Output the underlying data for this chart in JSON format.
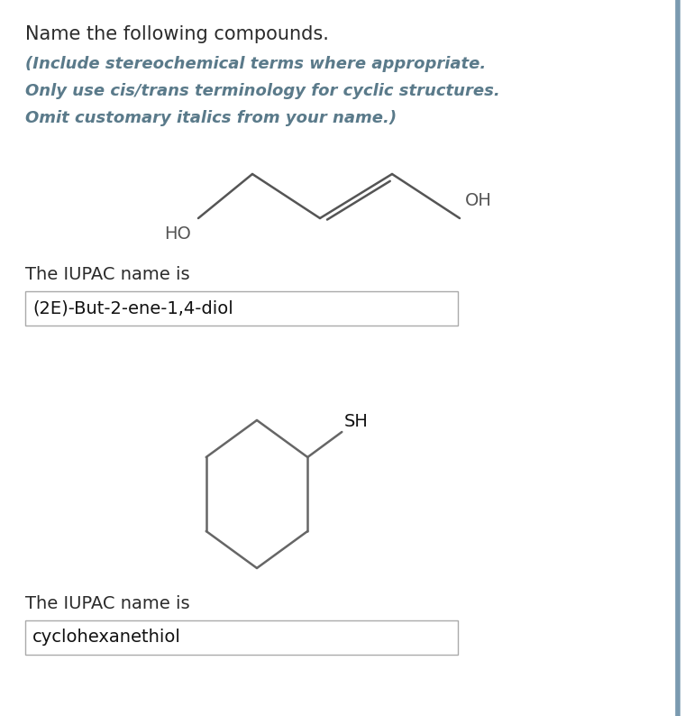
{
  "title": "Name the following compounds.",
  "subtitle_lines": [
    "(Include stereochemical terms where appropriate.",
    "Only use cis/trans terminology for cyclic structures.",
    "Omit customary italics from your name.)"
  ],
  "compound1": {
    "label_ho": "HO",
    "label_oh": "OH",
    "answer_label": "The IUPAC name is",
    "answer_text": "(2E)-But-2-ene-1,4-diol",
    "molecule_color": "#555555"
  },
  "compound2": {
    "label_sh": "SH",
    "answer_label": "The IUPAC name is",
    "answer_text": "cyclohexanethiol",
    "molecule_color": "#666666"
  },
  "bg_color": "#ffffff",
  "title_color": "#2b2b2b",
  "subtitle_color": "#5a7a8a",
  "answer_label_color": "#2b2b2b",
  "answer_text_color": "#111111",
  "box_color": "#aaaaaa",
  "right_bar_color": "#7a9ab0",
  "title_fontsize": 15,
  "subtitle_fontsize": 13,
  "answer_label_fontsize": 14,
  "answer_text_fontsize": 14
}
